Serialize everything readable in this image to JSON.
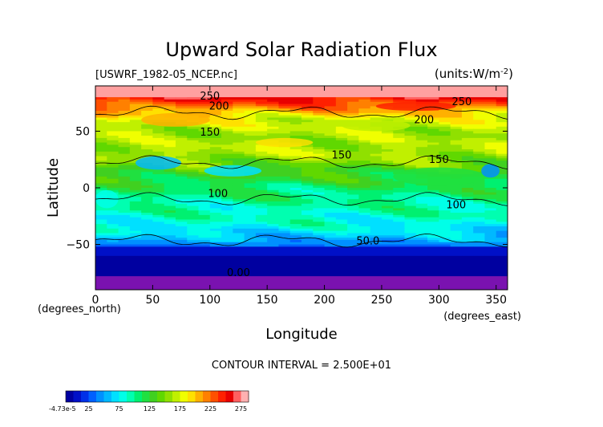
{
  "chart_data": {
    "type": "heatmap",
    "title": "Upward Solar Radiation Flux",
    "file_label": "[USWRF_1982-05_NCEP.nc]",
    "units_label": "(units:W/m^-2)",
    "xlabel": "Longitude",
    "ylabel": "Latitude",
    "x_units": "(degrees_east)",
    "y_units": "(degrees_north)",
    "xlim": [
      0,
      360
    ],
    "ylim": [
      -90,
      90
    ],
    "x_ticks": [
      0,
      50,
      100,
      150,
      200,
      250,
      300,
      350
    ],
    "y_ticks": [
      -50,
      0,
      50
    ],
    "contour_interval_text": "CONTOUR INTERVAL = 2.500E+01",
    "contour_labels": [
      {
        "text": "250",
        "lon": 100,
        "lat": 78
      },
      {
        "text": "200",
        "lon": 108,
        "lat": 69
      },
      {
        "text": "150",
        "lon": 100,
        "lat": 46
      },
      {
        "text": "150",
        "lon": 215,
        "lat": 26
      },
      {
        "text": "150",
        "lon": 300,
        "lat": 22
      },
      {
        "text": "100",
        "lon": 107,
        "lat": -8
      },
      {
        "text": "100",
        "lon": 315,
        "lat": -18
      },
      {
        "text": "250",
        "lon": 320,
        "lat": 73
      },
      {
        "text": "200",
        "lon": 287,
        "lat": 57
      },
      {
        "text": "50.0",
        "lon": 238,
        "lat": -50
      },
      {
        "text": "0.00",
        "lon": 125,
        "lat": -78
      }
    ],
    "zonal_profile": [
      {
        "lat": 90,
        "value": 275
      },
      {
        "lat": 78,
        "value": 250
      },
      {
        "lat": 70,
        "value": 215
      },
      {
        "lat": 60,
        "value": 175
      },
      {
        "lat": 45,
        "value": 160
      },
      {
        "lat": 30,
        "value": 165
      },
      {
        "lat": 15,
        "value": 135
      },
      {
        "lat": 0,
        "value": 110
      },
      {
        "lat": -15,
        "value": 95
      },
      {
        "lat": -30,
        "value": 85
      },
      {
        "lat": -40,
        "value": 70
      },
      {
        "lat": -50,
        "value": 40
      },
      {
        "lat": -60,
        "value": 10
      },
      {
        "lat": -78,
        "value": 0
      },
      {
        "lat": -90,
        "value": 0
      }
    ],
    "colorbar": {
      "min_label": "-4.73e-5",
      "tick_labels": [
        "25",
        "75",
        "125",
        "175",
        "225",
        "275"
      ],
      "colors": [
        "#0000a0",
        "#0010c8",
        "#0030e8",
        "#0060ff",
        "#0090ff",
        "#00b8ff",
        "#00e0ff",
        "#00ffe8",
        "#00ffb0",
        "#00f070",
        "#20e040",
        "#40d020",
        "#60d800",
        "#90e000",
        "#c0f000",
        "#f0ff00",
        "#ffe000",
        "#ffb000",
        "#ff8000",
        "#ff5000",
        "#ff2000",
        "#e80000",
        "#ff6060",
        "#ffb0b0"
      ]
    }
  }
}
